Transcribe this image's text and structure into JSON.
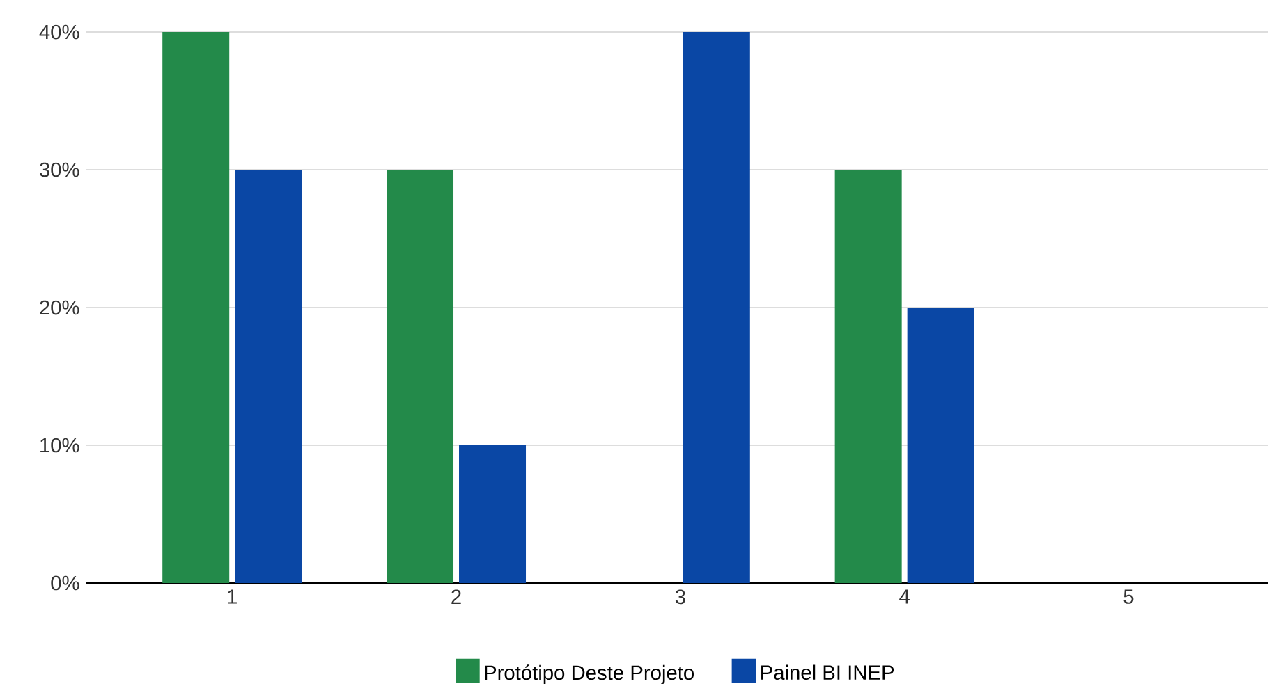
{
  "chart_data": {
    "type": "bar",
    "categories": [
      "1",
      "2",
      "3",
      "4",
      "5"
    ],
    "series": [
      {
        "name": "Protótipo Deste Projeto",
        "color": "#238a4a",
        "values": [
          40,
          30,
          0,
          30,
          0
        ]
      },
      {
        "name": "Painel BI INEP",
        "color": "#0a47a5",
        "values": [
          30,
          10,
          40,
          20,
          0
        ]
      }
    ],
    "ylim": [
      0,
      40
    ],
    "yticks": [
      {
        "value": 0,
        "label": "0%"
      },
      {
        "value": 10,
        "label": "10%"
      },
      {
        "value": 20,
        "label": "20%"
      },
      {
        "value": 30,
        "label": "30%"
      },
      {
        "value": 40,
        "label": "40%"
      }
    ],
    "grid": "y",
    "legend": "bottom"
  }
}
